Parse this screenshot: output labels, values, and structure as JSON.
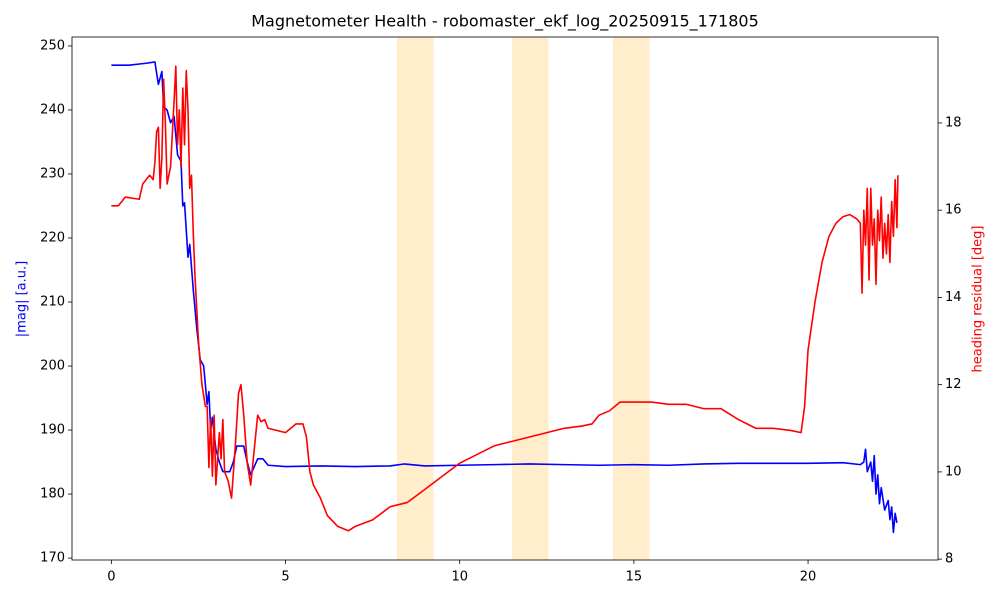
{
  "chart_data": {
    "type": "line",
    "title": "Magnetometer Health - robomaster_ekf_log_20250915_171805",
    "y_label": "|mag| [a.u.]",
    "y2_label": "heading residual [deg]",
    "xlim": [
      -1.13,
      23.73
    ],
    "xticks": [
      0,
      5,
      10,
      15,
      20
    ],
    "ylim": [
      169.7,
      251.4
    ],
    "yticks": [
      170,
      180,
      190,
      200,
      210,
      220,
      230,
      240,
      250
    ],
    "y2lim": [
      7.98,
      19.97
    ],
    "y2ticks": [
      8,
      10,
      12,
      14,
      16,
      18
    ],
    "y_label_color": "#0000ff",
    "y2_label_color": "#ff0000",
    "spans": {
      "color": "#ffa500",
      "opacity": 0.2,
      "ranges": [
        [
          8.2,
          9.25
        ],
        [
          11.5,
          12.55
        ],
        [
          14.4,
          15.45
        ]
      ]
    },
    "series": [
      {
        "color": "#0000ff",
        "axis": "y",
        "x": [
          0,
          0.5,
          1.0,
          1.25,
          1.35,
          1.45,
          1.5,
          1.6,
          1.7,
          1.8,
          1.9,
          2.0,
          2.05,
          2.1,
          2.2,
          2.25,
          2.35,
          2.45,
          2.55,
          2.65,
          2.75,
          2.8,
          2.85,
          2.9,
          3.0,
          3.1,
          3.2,
          3.4,
          3.5,
          3.6,
          3.8,
          3.9,
          4.0,
          4.2,
          4.35,
          4.5,
          5,
          6,
          7,
          8,
          8.4,
          9,
          10,
          11,
          12,
          13,
          14,
          15,
          16,
          17,
          18,
          19,
          20,
          21,
          21.5,
          21.6,
          21.65,
          21.7,
          21.8,
          21.85,
          21.9,
          21.95,
          22.0,
          22.05,
          22.1,
          22.2,
          22.3,
          22.35,
          22.4,
          22.45,
          22.5,
          22.55
        ],
        "values": [
          247,
          247,
          247.3,
          247.5,
          244,
          246,
          240.5,
          240,
          238,
          239,
          233,
          232,
          225,
          225.5,
          217,
          219,
          212,
          206,
          201,
          200,
          194,
          196,
          190,
          192,
          187,
          185,
          183.5,
          183.5,
          185,
          187.5,
          187.5,
          185,
          183,
          185.5,
          185.5,
          184.5,
          184.3,
          184.4,
          184.3,
          184.4,
          184.7,
          184.4,
          184.5,
          184.6,
          184.7,
          184.6,
          184.5,
          184.6,
          184.5,
          184.7,
          184.8,
          184.8,
          184.8,
          184.9,
          184.6,
          185,
          187,
          183.5,
          185,
          182,
          186,
          180,
          183,
          178.5,
          181,
          177.5,
          179,
          176,
          178,
          174,
          177,
          175.5
        ]
      },
      {
        "color": "#ff0000",
        "axis": "y2",
        "x": [
          0,
          0.2,
          0.3,
          0.4,
          0.8,
          0.9,
          1.0,
          1.1,
          1.2,
          1.25,
          1.3,
          1.35,
          1.4,
          1.45,
          1.5,
          1.55,
          1.6,
          1.7,
          1.8,
          1.85,
          1.9,
          1.95,
          2.0,
          2.05,
          2.1,
          2.15,
          2.2,
          2.25,
          2.3,
          2.35,
          2.4,
          2.5,
          2.6,
          2.7,
          2.75,
          2.8,
          2.85,
          2.9,
          2.95,
          3.0,
          3.1,
          3.15,
          3.2,
          3.25,
          3.35,
          3.45,
          3.55,
          3.65,
          3.72,
          3.8,
          3.9,
          4.0,
          4.1,
          4.2,
          4.3,
          4.4,
          4.5,
          5,
          5.3,
          5.5,
          5.6,
          5.7,
          5.8,
          6.0,
          6.2,
          6.5,
          6.8,
          7.0,
          7.5,
          8.0,
          8.5,
          9.0,
          9.5,
          10,
          10.5,
          11,
          11.5,
          12,
          12.5,
          13,
          13.5,
          13.8,
          14,
          14.3,
          14.6,
          15,
          15.5,
          16,
          16.5,
          17,
          17.5,
          18,
          18.5,
          19,
          19.5,
          19.8,
          19.9,
          20,
          20.2,
          20.4,
          20.6,
          20.8,
          21,
          21.2,
          21.4,
          21.5,
          21.55,
          21.6,
          21.65,
          21.7,
          21.75,
          21.8,
          21.85,
          21.9,
          21.95,
          22.0,
          22.05,
          22.1,
          22.15,
          22.2,
          22.25,
          22.3,
          22.35,
          22.4,
          22.45,
          22.5,
          22.55,
          22.58
        ],
        "values": [
          16.1,
          16.1,
          16.2,
          16.3,
          16.25,
          16.6,
          16.7,
          16.8,
          16.7,
          17.1,
          17.8,
          17.9,
          16.5,
          17.2,
          19,
          18,
          16.6,
          17,
          18.5,
          19.3,
          17.5,
          18.3,
          17,
          18.8,
          17.5,
          19.2,
          18.3,
          16.5,
          16.8,
          15.5,
          14.5,
          13,
          12,
          11.5,
          11.5,
          10.1,
          11.2,
          9.9,
          11.3,
          9.7,
          10.9,
          10.3,
          11.2,
          10,
          9.8,
          9.4,
          10.5,
          11.8,
          12,
          11.3,
          10.2,
          9.7,
          10.5,
          11.3,
          11.15,
          11.2,
          11,
          10.9,
          11.1,
          11.1,
          10.8,
          10,
          9.7,
          9.4,
          9.0,
          8.75,
          8.65,
          8.75,
          8.9,
          9.2,
          9.3,
          9.6,
          9.9,
          10.2,
          10.4,
          10.6,
          10.7,
          10.8,
          10.9,
          11.0,
          11.05,
          11.1,
          11.3,
          11.4,
          11.6,
          11.6,
          11.6,
          11.55,
          11.55,
          11.45,
          11.45,
          11.2,
          11.0,
          11.0,
          10.95,
          10.9,
          11.5,
          12.8,
          13.9,
          14.8,
          15.4,
          15.7,
          15.85,
          15.9,
          15.8,
          15.7,
          14.1,
          16,
          15.2,
          16.5,
          14.4,
          16.5,
          15.2,
          15.8,
          14.3,
          16,
          15.3,
          16.3,
          14.9,
          15.7,
          15,
          15.9,
          14.8,
          16.2,
          15.4,
          16.7,
          15.6,
          16.8
        ]
      }
    ]
  }
}
